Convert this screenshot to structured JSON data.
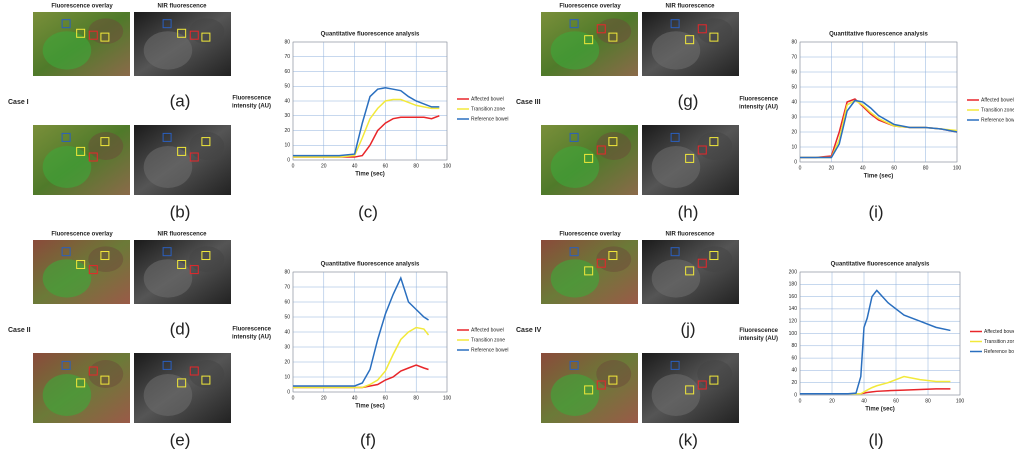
{
  "cases": [
    {
      "label": "Case I",
      "overlay_title": "Fluorescence overlay",
      "nir_title": "NIR fluorescence",
      "panel_labels": [
        "(a)",
        "(b)",
        "(c)"
      ]
    },
    {
      "label": "Case II",
      "overlay_title": "Fluorescence overlay",
      "nir_title": "NIR fluorescence",
      "panel_labels": [
        "(d)",
        "(e)",
        "(f)"
      ]
    },
    {
      "label": "Case III",
      "overlay_title": "Fluorescence overlay",
      "nir_title": "NIR fluorescence",
      "panel_labels": [
        "(g)",
        "(h)",
        "(i)"
      ]
    },
    {
      "label": "Case IV",
      "overlay_title": "Fluorescence overlay",
      "nir_title": "NIR fluorescence",
      "panel_labels": [
        "(j)",
        "(k)",
        "(l)"
      ]
    }
  ],
  "chart_data": [
    {
      "type": "line",
      "title": "Quantitative fluorescence analysis",
      "x_label": "Time (sec)",
      "y_label": [
        "Fluorescence",
        "intensity (AU)"
      ],
      "x": [
        0,
        10,
        20,
        30,
        40,
        45,
        50,
        55,
        60,
        65,
        70,
        75,
        80,
        85,
        90,
        95
      ],
      "series": [
        {
          "name": "Affected bowel",
          "color": "#e8262a",
          "values": [
            2,
            2,
            2,
            2,
            2,
            3,
            10,
            20,
            25,
            28,
            29,
            29,
            29,
            29,
            28,
            30
          ]
        },
        {
          "name": "Transition zone",
          "color": "#f2e93a",
          "values": [
            2,
            2,
            2,
            2,
            3,
            15,
            28,
            35,
            40,
            41,
            41,
            39,
            37,
            36,
            35,
            35
          ]
        },
        {
          "name": "Reference bowel",
          "color": "#2a6fbf",
          "values": [
            3,
            3,
            3,
            3,
            4,
            25,
            43,
            48,
            49,
            48,
            47,
            43,
            40,
            38,
            36,
            36
          ]
        }
      ],
      "xlim": [
        0,
        100
      ],
      "xticks": [
        0,
        20,
        40,
        60,
        80,
        100
      ],
      "ylim": [
        0,
        80
      ],
      "yticks": [
        0,
        10,
        20,
        30,
        40,
        50,
        60,
        70,
        80
      ],
      "grid": true,
      "legend": "right"
    },
    {
      "type": "line",
      "title": "Quantitative fluorescence analysis",
      "x_label": "Time (sec)",
      "y_label": [
        "Fluorescence",
        "intensity (AU)"
      ],
      "x": [
        0,
        10,
        20,
        30,
        40,
        45,
        50,
        55,
        60,
        65,
        70,
        75,
        80,
        85,
        88
      ],
      "series": [
        {
          "name": "Affected bowel",
          "color": "#e8262a",
          "values": [
            3,
            3,
            3,
            3,
            3,
            3,
            4,
            5,
            8,
            10,
            14,
            16,
            18,
            16,
            15
          ]
        },
        {
          "name": "Transition zone",
          "color": "#f2e93a",
          "values": [
            3,
            3,
            3,
            3,
            3,
            3,
            5,
            8,
            14,
            25,
            35,
            40,
            43,
            42,
            38
          ]
        },
        {
          "name": "Reference bowel",
          "color": "#2a6fbf",
          "values": [
            4,
            4,
            4,
            4,
            4,
            6,
            15,
            35,
            52,
            65,
            76,
            60,
            55,
            50,
            48
          ]
        }
      ],
      "xlim": [
        0,
        100
      ],
      "xticks": [
        0,
        20,
        40,
        60,
        80,
        100
      ],
      "ylim": [
        0,
        80
      ],
      "yticks": [
        0,
        10,
        20,
        30,
        40,
        50,
        60,
        70,
        80
      ],
      "grid": true,
      "legend": "right"
    },
    {
      "type": "line",
      "title": "Quantitative fluorescence analysis",
      "x_label": "Time (sec)",
      "y_label": [
        "Fluorescence",
        "intensity (AU)"
      ],
      "x": [
        0,
        10,
        20,
        25,
        30,
        35,
        40,
        45,
        50,
        60,
        70,
        80,
        90,
        100
      ],
      "series": [
        {
          "name": "Affected bowel",
          "color": "#e8262a",
          "values": [
            3,
            3,
            4,
            20,
            40,
            42,
            37,
            32,
            28,
            24,
            23,
            23,
            22,
            20
          ]
        },
        {
          "name": "Transition zone",
          "color": "#f2e93a",
          "values": [
            3,
            3,
            3,
            15,
            38,
            41,
            38,
            33,
            29,
            24,
            23,
            23,
            22,
            21
          ]
        },
        {
          "name": "Reference bowel",
          "color": "#2a6fbf",
          "values": [
            3,
            3,
            3,
            12,
            34,
            41,
            40,
            36,
            31,
            25,
            23,
            23,
            22,
            20
          ]
        }
      ],
      "xlim": [
        0,
        100
      ],
      "xticks": [
        0,
        20,
        40,
        60,
        80,
        100
      ],
      "ylim": [
        0,
        80
      ],
      "yticks": [
        0,
        10,
        20,
        30,
        40,
        50,
        60,
        70,
        80
      ],
      "grid": true,
      "legend": "right"
    },
    {
      "type": "line",
      "title": "Quantitative fluorescence analysis",
      "x_label": "Time (sec)",
      "y_label": [
        "Fluorescence",
        "intensity (AU)"
      ],
      "x": [
        0,
        10,
        20,
        30,
        35,
        38,
        40,
        42,
        45,
        48,
        55,
        65,
        75,
        85,
        94
      ],
      "series": [
        {
          "name": "Affected bowel",
          "color": "#e8262a",
          "values": [
            2,
            2,
            2,
            2,
            2,
            2,
            3,
            4,
            5,
            6,
            7,
            8,
            9,
            10,
            10
          ]
        },
        {
          "name": "Transition zone",
          "color": "#f2e93a",
          "values": [
            2,
            2,
            2,
            2,
            2,
            2,
            5,
            8,
            12,
            15,
            20,
            30,
            25,
            22,
            22
          ]
        },
        {
          "name": "Reference bowel",
          "color": "#2a6fbf",
          "values": [
            2,
            2,
            2,
            2,
            3,
            30,
            110,
            125,
            160,
            170,
            150,
            130,
            120,
            110,
            105
          ]
        }
      ],
      "xlim": [
        0,
        100
      ],
      "xticks": [
        0,
        20,
        40,
        60,
        80,
        100
      ],
      "ylim": [
        0,
        200
      ],
      "yticks": [
        0,
        20,
        40,
        60,
        80,
        100,
        120,
        140,
        160,
        180,
        200
      ],
      "grid": true,
      "legend": "right"
    }
  ]
}
